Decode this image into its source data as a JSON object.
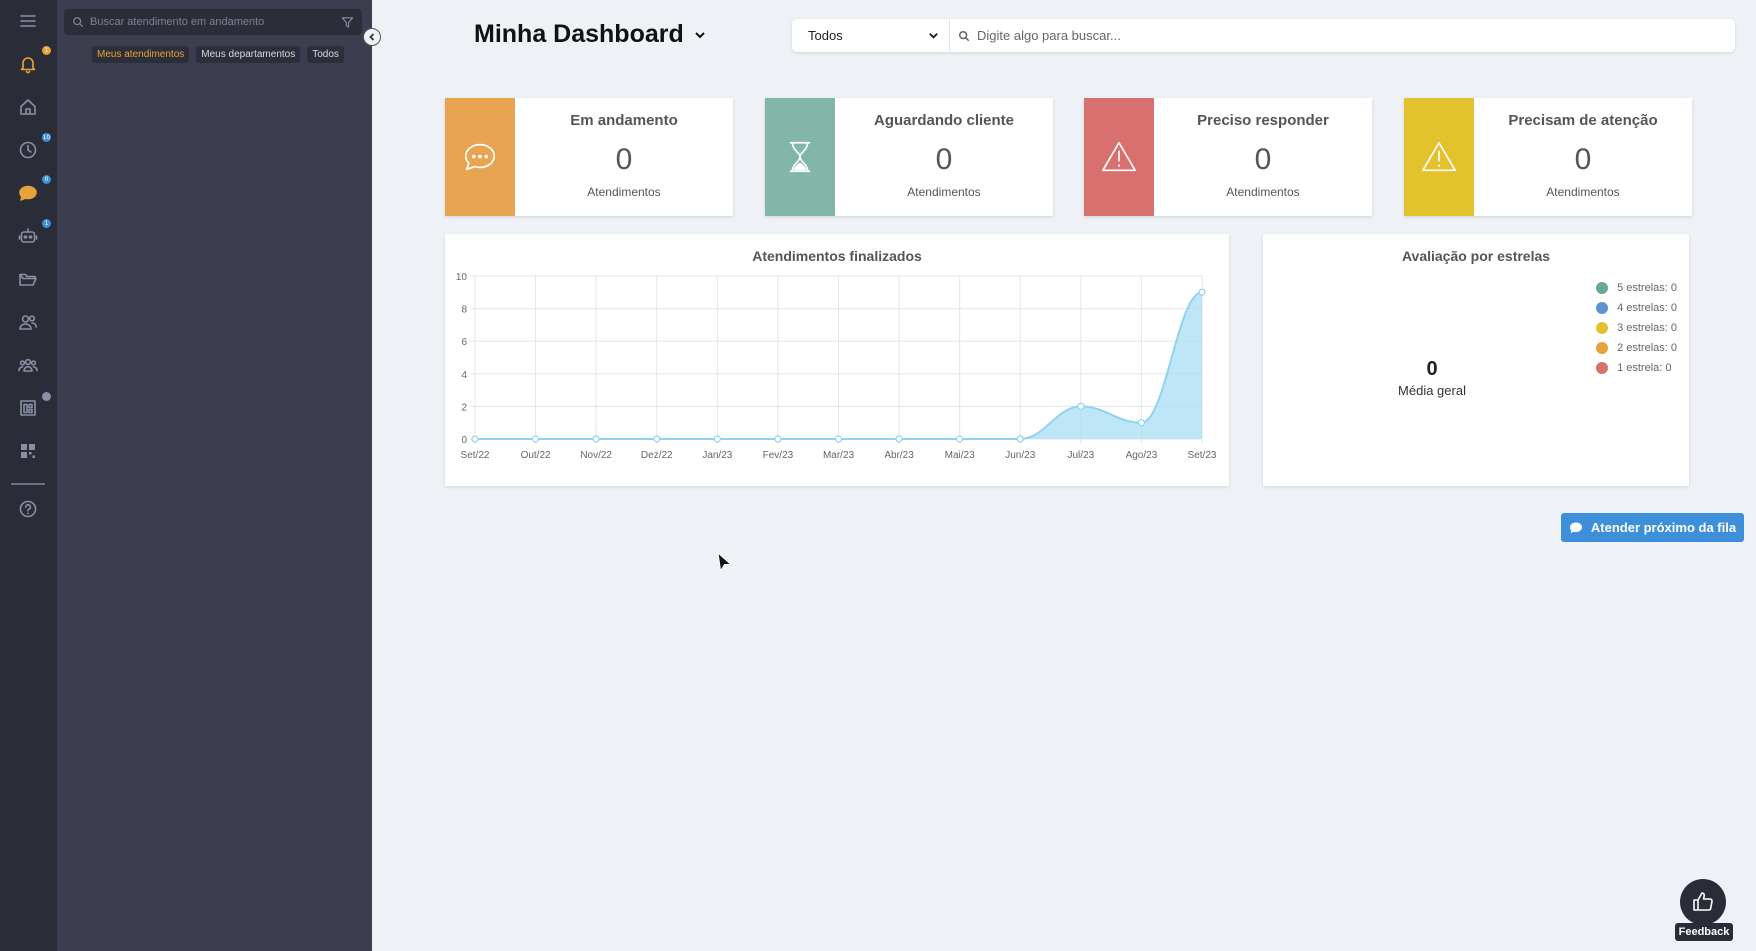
{
  "sidebar": {
    "icons": [
      {
        "name": "menu-icon"
      },
      {
        "name": "notifications-icon",
        "badge": "1",
        "badge_color": "#e8a23b"
      },
      {
        "name": "home-icon"
      },
      {
        "name": "history-icon",
        "badge": "10",
        "badge_color": "#3c8fd8"
      },
      {
        "name": "chat-icon",
        "badge": "0",
        "badge_color": "#3c8fd8"
      },
      {
        "name": "bot-icon",
        "badge": "1",
        "badge_color": "#3c8fd8"
      },
      {
        "name": "folder-icon"
      },
      {
        "name": "contacts-icon"
      },
      {
        "name": "teams-icon"
      },
      {
        "name": "reports-icon",
        "badge": "",
        "badge_color": "#8a8fa3"
      },
      {
        "name": "qrcode-icon"
      },
      {
        "name": "help-icon"
      }
    ]
  },
  "chat_panel": {
    "search_placeholder": "Buscar atendimento em andamento",
    "tabs": [
      "Meus atendimentos",
      "Meus departamentos",
      "Todos"
    ]
  },
  "header": {
    "title": "Minha Dashboard",
    "filter_value": "Todos",
    "search_placeholder": "Digite algo para buscar..."
  },
  "cards": [
    {
      "title": "Em andamento",
      "value": "0",
      "subtitle": "Atendimentos",
      "color": "#e8a451",
      "icon": "chat-bubble-icon"
    },
    {
      "title": "Aguardando cliente",
      "value": "0",
      "subtitle": "Atendimentos",
      "color": "#82b6a8",
      "icon": "hourglass-icon"
    },
    {
      "title": "Preciso responder",
      "value": "0",
      "subtitle": "Atendimentos",
      "color": "#d7706f",
      "icon": "warning-icon"
    },
    {
      "title": "Precisam de atenção",
      "value": "0",
      "subtitle": "Atendimentos",
      "color": "#e4c22d",
      "icon": "warning-icon"
    }
  ],
  "line_chart": {
    "title": "Atendimentos finalizados"
  },
  "rating": {
    "title": "Avaliação por estrelas",
    "average_value": "0",
    "average_label": "Média geral",
    "legend": [
      {
        "label": "5 estrelas: 0",
        "color": "#6aa896"
      },
      {
        "label": "4 estrelas: 0",
        "color": "#5f93d2"
      },
      {
        "label": "3 estrelas: 0",
        "color": "#e4c22d"
      },
      {
        "label": "2 estrelas: 0",
        "color": "#e8a23b"
      },
      {
        "label": "1 estrela: 0",
        "color": "#d7706f"
      }
    ]
  },
  "actions": {
    "next_in_queue": "Atender próximo da fila",
    "feedback": "Feedback"
  },
  "chart_data": {
    "type": "area",
    "title": "Atendimentos finalizados",
    "categories": [
      "Set/22",
      "Out/22",
      "Nov/22",
      "Dez/22",
      "Jan/23",
      "Fev/23",
      "Mar/23",
      "Abr/23",
      "Mai/23",
      "Jun/23",
      "Jul/23",
      "Ago/23",
      "Set/23"
    ],
    "values": [
      0,
      0,
      0,
      0,
      0,
      0,
      0,
      0,
      0,
      0,
      2,
      1,
      9
    ],
    "ylim": [
      0,
      10
    ],
    "yticks": [
      0,
      2,
      4,
      6,
      8,
      10
    ],
    "grid": true,
    "color": "#a9ddf3"
  }
}
